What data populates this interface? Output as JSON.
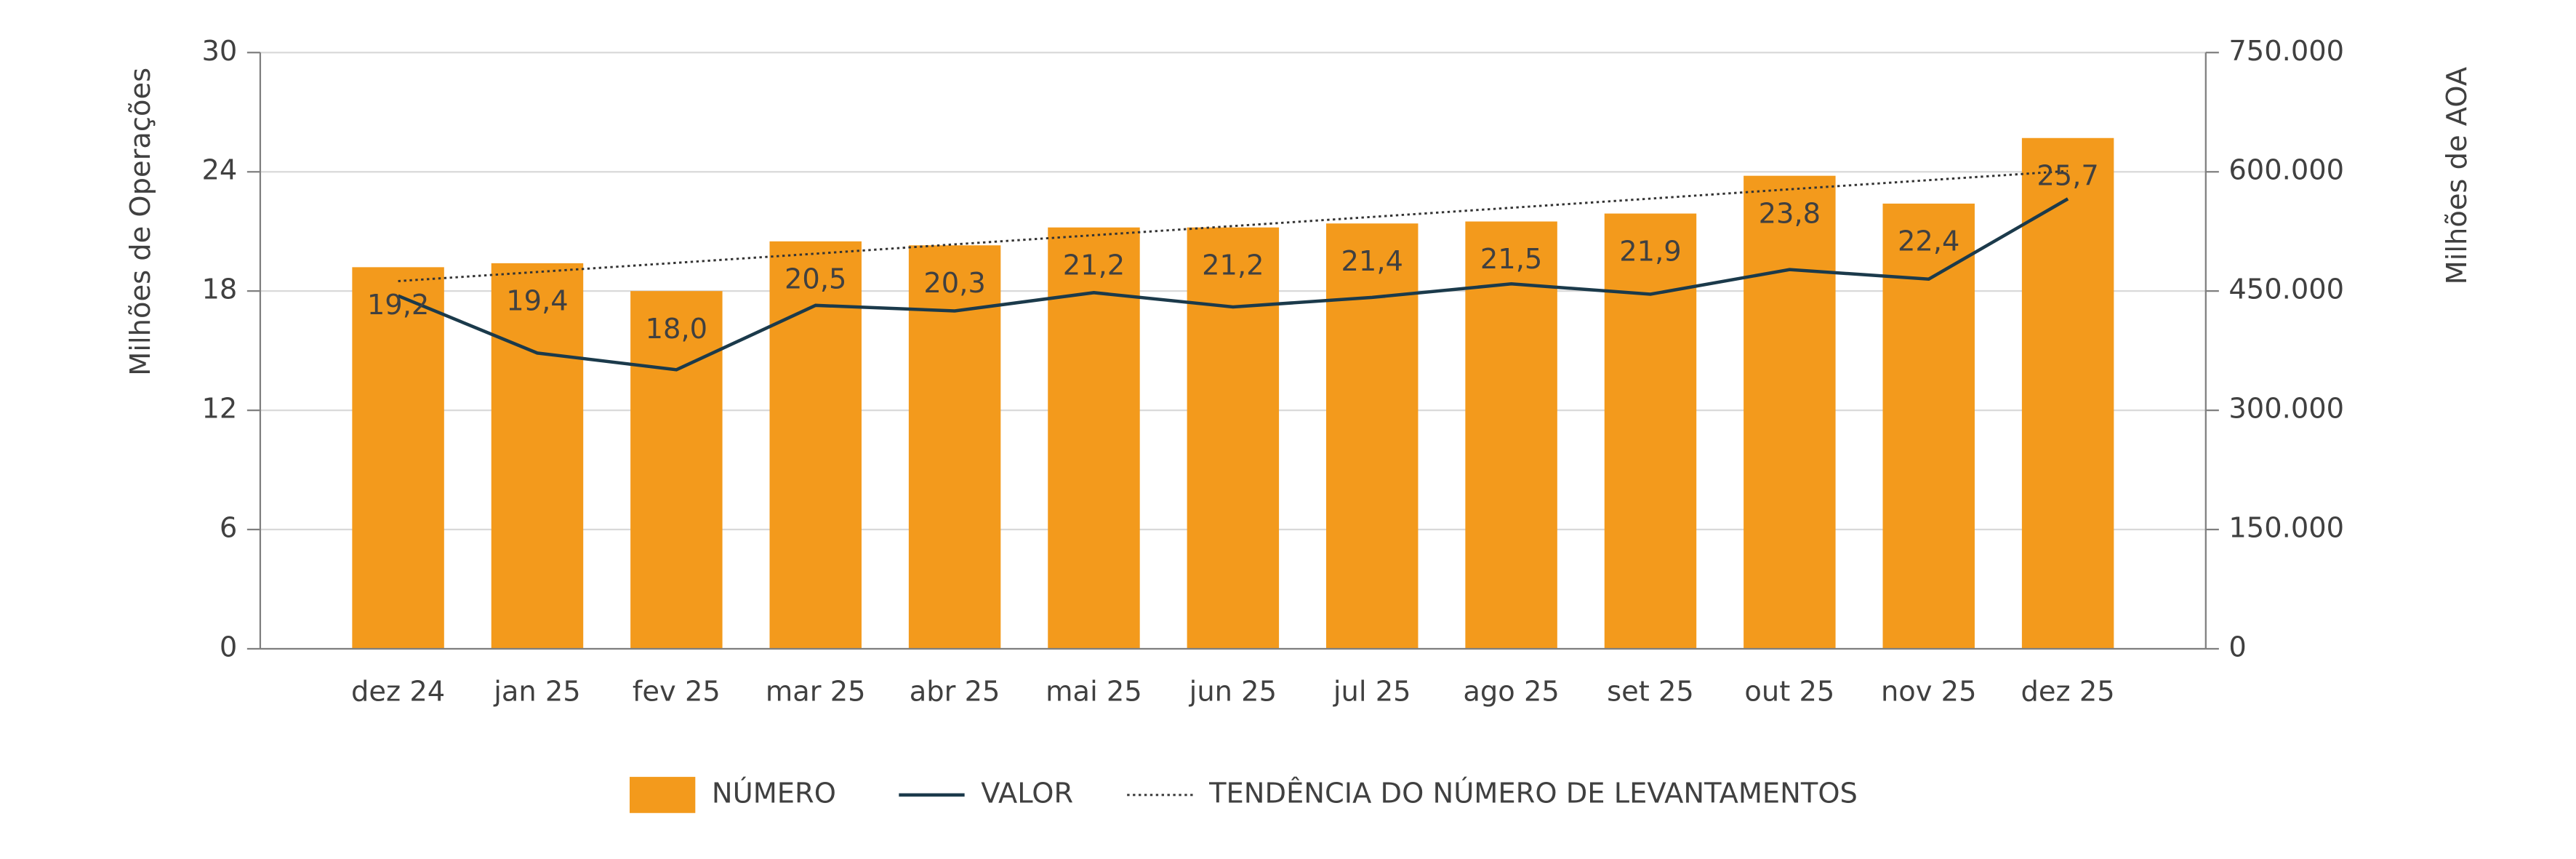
{
  "chart_data": {
    "type": "bar",
    "categories": [
      "dez 24",
      "jan 25",
      "fev 25",
      "mar 25",
      "abr 25",
      "mai 25",
      "jun 25",
      "jul 25",
      "ago 25",
      "set 25",
      "out 25",
      "nov 25",
      "dez 25"
    ],
    "y_label": "Milhões de Operações",
    "y2_label": "Milhões de AOA",
    "ylim": [
      0,
      30
    ],
    "yticks": [
      0,
      6,
      12,
      18,
      24,
      30
    ],
    "y2lim": [
      0,
      750000
    ],
    "y2ticks": [
      {
        "value": 0,
        "label": "0"
      },
      {
        "value": 150000,
        "label": "150.000"
      },
      {
        "value": 300000,
        "label": "300.000"
      },
      {
        "value": 450000,
        "label": "450.000"
      },
      {
        "value": 600000,
        "label": "600.000"
      },
      {
        "value": 750000,
        "label": "750.000"
      }
    ],
    "grid": true,
    "legend": "bottom",
    "series": [
      {
        "name": "NÚMERO",
        "type": "bar",
        "color": "#f39a1c",
        "values": [
          19.2,
          19.4,
          18.0,
          20.5,
          20.3,
          21.2,
          21.2,
          21.4,
          21.5,
          21.9,
          23.8,
          22.4,
          25.7
        ],
        "value_labels": [
          "19,2",
          "19,4",
          "18,0",
          "20,5",
          "20,3",
          "21,2",
          "21,2",
          "21,4",
          "21,5",
          "21,9",
          "23,8",
          "22,4",
          "25,7"
        ]
      },
      {
        "name": "VALOR",
        "type": "line",
        "axis": "y2",
        "color": "#1b3a4b",
        "values": [
          444000,
          372000,
          351000,
          432000,
          425000,
          448000,
          430000,
          442000,
          459000,
          446000,
          477000,
          465000,
          566000
        ]
      },
      {
        "name": "TENDÊNCIA DO NÚMERO DE LEVANTAMENTOS",
        "type": "line",
        "style": "dotted",
        "color": "#333333",
        "values": [
          18.5,
          18.96,
          19.42,
          19.88,
          20.35,
          20.81,
          21.27,
          21.73,
          22.19,
          22.65,
          23.12,
          23.58,
          24.04
        ]
      }
    ]
  }
}
